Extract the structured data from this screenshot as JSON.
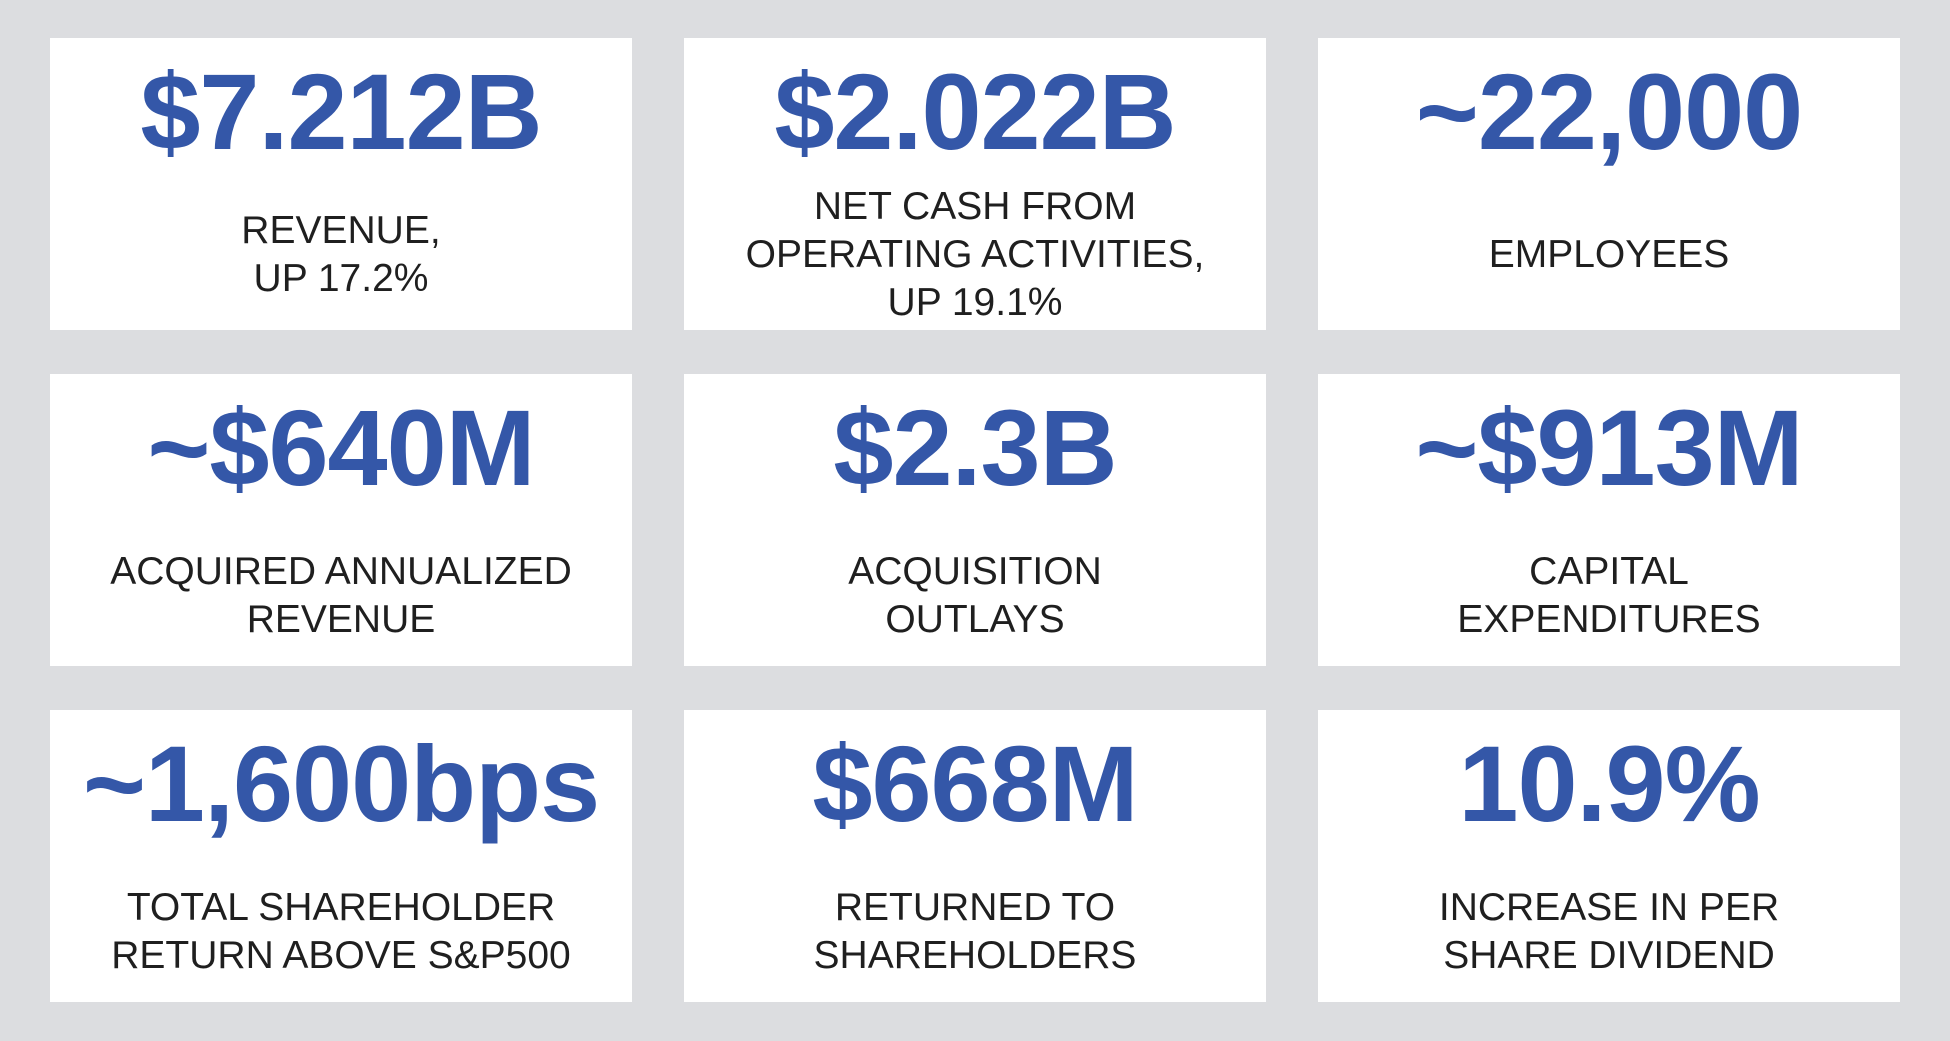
{
  "metrics": [
    {
      "value": "$7.212B",
      "label": [
        "REVENUE,",
        "UP 17.2%"
      ]
    },
    {
      "value": "$2.022B",
      "label": [
        "NET CASH FROM",
        "OPERATING ACTIVITIES,",
        "UP 19.1%"
      ]
    },
    {
      "value": "~22,000",
      "label": [
        "EMPLOYEES"
      ]
    },
    {
      "value": "~$640M",
      "label": [
        "ACQUIRED ANNUALIZED",
        "REVENUE"
      ]
    },
    {
      "value": "$2.3B",
      "label": [
        "ACQUISITION",
        "OUTLAYS"
      ]
    },
    {
      "value": "~$913M",
      "label": [
        "CAPITAL",
        "EXPENDITURES"
      ]
    },
    {
      "value": "~1,600bps",
      "label": [
        "TOTAL SHAREHOLDER",
        "RETURN ABOVE S&P500"
      ]
    },
    {
      "value": "$668M",
      "label": [
        "RETURNED TO",
        "SHAREHOLDERS"
      ]
    },
    {
      "value": "10.9%",
      "label": [
        "INCREASE IN PER",
        "SHARE DIVIDEND"
      ]
    }
  ],
  "colors": {
    "background": "#dcdde0",
    "card": "#ffffff",
    "value_text": "#3457a8",
    "label_text": "#1f1f1f"
  }
}
